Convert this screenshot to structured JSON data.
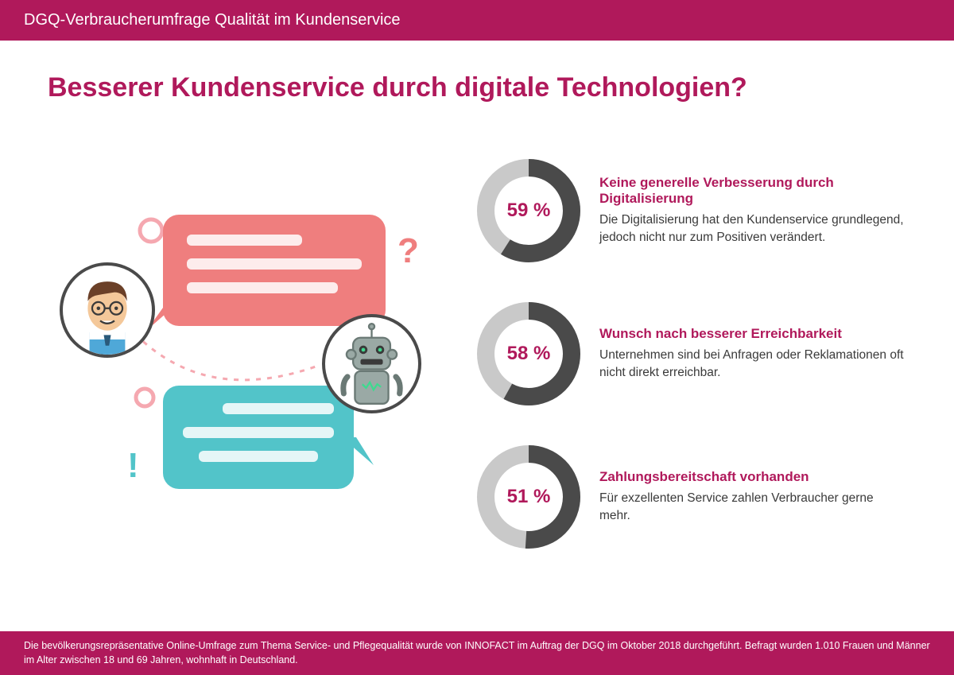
{
  "header": {
    "text": "DGQ-Verbraucherumfrage Qualität im Kundenservice",
    "bg_color": "#b0195b",
    "text_color": "#ffffff"
  },
  "title": {
    "text": "Besserer Kundenservice durch digitale Technologien?",
    "color": "#b0195b",
    "fontsize": 34
  },
  "stats": [
    {
      "pct_label": "59 %",
      "pct_value": 59,
      "heading": "Keine generelle Verbesserung durch Digitalisierung",
      "desc": "Die Digitalisierung hat den Kundenservice grund­legend, jedoch nicht nur zum Positiven verändert."
    },
    {
      "pct_label": "58 %",
      "pct_value": 58,
      "heading": "Wunsch nach besserer Erreichbarkeit",
      "desc": "Unternehmen sind bei Anfragen oder Reklamationen oft nicht direkt erreichbar."
    },
    {
      "pct_label": "51 %",
      "pct_value": 51,
      "heading": "Zahlungsbereitschaft vorhanden",
      "desc": "Für exzellenten Service zahlen Verbraucher gerne mehr."
    }
  ],
  "donut_style": {
    "size": 130,
    "thickness": 22,
    "fg_color": "#4a4a4a",
    "bg_color": "#c9c9c9",
    "pct_color": "#b0195b",
    "pct_fontsize": 24
  },
  "illustration": {
    "bubble1_color": "#ef7e7e",
    "bubble2_color": "#52c4c9",
    "person_hair": "#6b4028",
    "person_skin": "#f4c89a",
    "robot_body": "#9aa9a5",
    "robot_eye": "#3fd98f",
    "accent_pink": "#f5a8b0",
    "accent_teal": "#52c4c9",
    "circle_stroke": "#4a4a4a"
  },
  "footer": {
    "text": "Die bevölkerungsrepräsentative Online-Umfrage zum Thema Service- und Pflegequalität wurde von INNOFACT im Auftrag der DGQ im Oktober 2018 durchgeführt. Befragt wurden 1.010 Frauen und Männer im Alter zwischen 18 und 69 Jahren, wohnhaft in Deutschland.",
    "bg_color": "#b0195b",
    "text_color": "#ffffff"
  }
}
